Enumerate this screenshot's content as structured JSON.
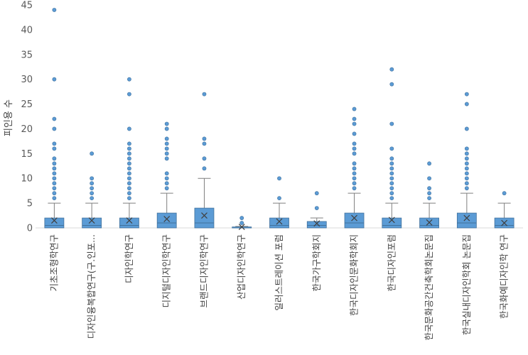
{
  "chart_data": {
    "type": "box",
    "ylabel": "피인용 수",
    "ylim": [
      0,
      45
    ],
    "yticks": [
      0,
      5,
      10,
      15,
      20,
      25,
      30,
      35,
      40,
      45
    ],
    "grid": false,
    "colors": {
      "box": "#5b9bd5",
      "edge": "#41719c",
      "whisker": "#7f7f7f",
      "mean": "#404040"
    },
    "categories": [
      "기초조형학연구",
      "디자인융복합연구(구.인포...",
      "디자인학연구",
      "디지털디자인학연구",
      "브랜드디자인학연구",
      "산업디자인학연구",
      "일러스트레이션 포럼",
      "한국가구학회지",
      "한국디자인문화학회지",
      "한국디자인포럼",
      "한국문화공간건축학회논문집",
      "한국실내디자인학회 논문집",
      "한국화예디자인학 연구"
    ],
    "boxes": [
      {
        "min": 0,
        "q1": 0,
        "median": 0.5,
        "q3": 2,
        "max": 5,
        "mean": 1.5,
        "outliers": [
          6,
          7,
          8,
          9,
          10,
          11,
          12,
          13,
          14,
          16,
          17,
          20,
          22,
          30,
          44
        ]
      },
      {
        "min": 0,
        "q1": 0,
        "median": 0.5,
        "q3": 2,
        "max": 5,
        "mean": 1.5,
        "outliers": [
          6,
          7,
          8,
          9,
          10,
          15
        ]
      },
      {
        "min": 0,
        "q1": 0,
        "median": 0.5,
        "q3": 2,
        "max": 5,
        "mean": 1.5,
        "outliers": [
          6,
          7,
          8,
          9,
          10,
          11,
          12,
          13,
          14,
          15,
          16,
          17,
          20,
          27,
          30
        ]
      },
      {
        "min": 0,
        "q1": 0,
        "median": 1,
        "q3": 3,
        "max": 7,
        "mean": 1.8,
        "outliers": [
          8,
          9,
          10,
          11,
          14,
          15,
          16,
          17,
          18,
          20,
          21
        ]
      },
      {
        "min": 0,
        "q1": 0,
        "median": 1,
        "q3": 4,
        "max": 10,
        "mean": 2.5,
        "outliers": [
          12,
          14,
          17,
          18,
          27
        ]
      },
      {
        "min": 0,
        "q1": 0,
        "median": 0,
        "q3": 0.2,
        "max": 0.3,
        "mean": 0.2,
        "outliers": [
          1,
          2
        ]
      },
      {
        "min": 0,
        "q1": 0,
        "median": 0.5,
        "q3": 2,
        "max": 5,
        "mean": 1.3,
        "outliers": [
          6,
          10
        ]
      },
      {
        "min": 0,
        "q1": 0,
        "median": 0.5,
        "q3": 1.3,
        "max": 2,
        "mean": 0.9,
        "outliers": [
          4,
          7
        ]
      },
      {
        "min": 0,
        "q1": 0,
        "median": 1,
        "q3": 3,
        "max": 7,
        "mean": 2,
        "outliers": [
          8,
          9,
          10,
          11,
          12,
          13,
          15,
          16,
          17,
          19,
          21,
          22,
          24
        ]
      },
      {
        "min": 0,
        "q1": 0,
        "median": 0.5,
        "q3": 2,
        "max": 5,
        "mean": 1.6,
        "outliers": [
          6,
          7,
          8,
          9,
          10,
          11,
          12,
          13,
          14,
          16,
          21,
          29,
          32
        ]
      },
      {
        "min": 0,
        "q1": 0,
        "median": 0.5,
        "q3": 2,
        "max": 5,
        "mean": 1.1,
        "outliers": [
          6,
          7,
          8,
          10,
          13
        ]
      },
      {
        "min": 0,
        "q1": 0,
        "median": 1,
        "q3": 3,
        "max": 7,
        "mean": 2,
        "outliers": [
          8,
          9,
          10,
          11,
          12,
          13,
          14,
          15,
          16,
          20,
          25,
          27
        ]
      },
      {
        "min": 0,
        "q1": 0,
        "median": 0.5,
        "q3": 2,
        "max": 5,
        "mean": 1,
        "outliers": [
          7
        ]
      }
    ]
  }
}
